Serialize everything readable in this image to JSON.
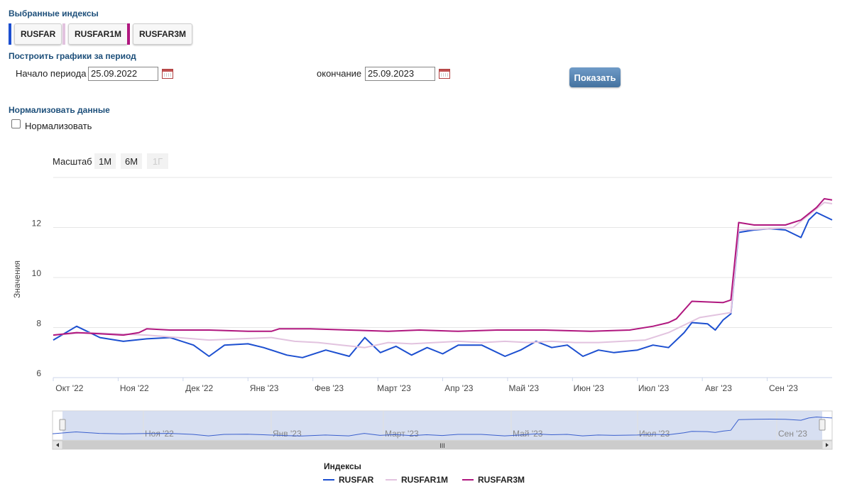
{
  "selected": {
    "title": "Выбранные индексы",
    "chips": [
      {
        "label": "RUSFAR",
        "color": "#1c4fd0"
      },
      {
        "label": "RUSFAR1M",
        "color": "#e2c3df"
      },
      {
        "label": "RUSFAR3M",
        "color": "#b0177f"
      }
    ]
  },
  "period": {
    "title": "Построить графики за период",
    "start_label": "Начало периода",
    "start_value": "25.09.2022",
    "end_label": "окончание",
    "end_value": "25.09.2023",
    "show_label": "Показать"
  },
  "normalize": {
    "title": "Нормализовать данные",
    "checkbox_label": "Нормализовать",
    "checked": false
  },
  "zoom": {
    "label": "Масштаб",
    "options": [
      "1М",
      "6М",
      "1Г"
    ]
  },
  "chart_data": {
    "type": "line",
    "ylabel": "Значения",
    "ylim": [
      6,
      14
    ],
    "y_ticks": [
      6,
      8,
      10,
      12
    ],
    "x_ticks": [
      "Окт '22",
      "Ноя '22",
      "Дек '22",
      "Янв '23",
      "Фев '23",
      "Март '23",
      "Апр '23",
      "Май '23",
      "Июн '23",
      "Июл '23",
      "Авг '23",
      "Сен '23"
    ],
    "grid": "horizontal",
    "series": [
      {
        "name": "RUSFAR",
        "color": "#1c4fd0",
        "points": [
          [
            0,
            7.5
          ],
          [
            3,
            8.05
          ],
          [
            6,
            7.6
          ],
          [
            9,
            7.45
          ],
          [
            12,
            7.55
          ],
          [
            15,
            7.6
          ],
          [
            18,
            7.3
          ],
          [
            20,
            6.85
          ],
          [
            22,
            7.3
          ],
          [
            25,
            7.35
          ],
          [
            27,
            7.2
          ],
          [
            30,
            6.9
          ],
          [
            32,
            6.8
          ],
          [
            35,
            7.1
          ],
          [
            38,
            6.85
          ],
          [
            40,
            7.6
          ],
          [
            42,
            7.0
          ],
          [
            44,
            7.25
          ],
          [
            46,
            6.9
          ],
          [
            48,
            7.2
          ],
          [
            50,
            6.95
          ],
          [
            52,
            7.3
          ],
          [
            55,
            7.3
          ],
          [
            58,
            6.85
          ],
          [
            60,
            7.1
          ],
          [
            62,
            7.45
          ],
          [
            64,
            7.2
          ],
          [
            66,
            7.3
          ],
          [
            68,
            6.85
          ],
          [
            70,
            7.1
          ],
          [
            72,
            7.0
          ],
          [
            75,
            7.1
          ],
          [
            77,
            7.3
          ],
          [
            79,
            7.2
          ],
          [
            81,
            7.8
          ],
          [
            82,
            8.2
          ],
          [
            84,
            8.15
          ],
          [
            85,
            7.9
          ],
          [
            86,
            8.3
          ],
          [
            87,
            8.55
          ],
          [
            88,
            11.8
          ],
          [
            90,
            11.9
          ],
          [
            92,
            11.95
          ],
          [
            94,
            11.9
          ],
          [
            96,
            11.6
          ],
          [
            97,
            12.3
          ],
          [
            98,
            12.6
          ],
          [
            99,
            12.45
          ],
          [
            100,
            12.3
          ]
        ]
      },
      {
        "name": "RUSFAR1M",
        "color": "#e2c3df",
        "points": [
          [
            0,
            7.7
          ],
          [
            4,
            7.8
          ],
          [
            8,
            7.75
          ],
          [
            12,
            7.7
          ],
          [
            16,
            7.6
          ],
          [
            20,
            7.5
          ],
          [
            24,
            7.55
          ],
          [
            28,
            7.6
          ],
          [
            31,
            7.45
          ],
          [
            34,
            7.4
          ],
          [
            37,
            7.3
          ],
          [
            40,
            7.2
          ],
          [
            43,
            7.4
          ],
          [
            46,
            7.35
          ],
          [
            49,
            7.4
          ],
          [
            52,
            7.45
          ],
          [
            55,
            7.4
          ],
          [
            58,
            7.45
          ],
          [
            61,
            7.4
          ],
          [
            64,
            7.45
          ],
          [
            67,
            7.4
          ],
          [
            70,
            7.4
          ],
          [
            73,
            7.45
          ],
          [
            76,
            7.5
          ],
          [
            79,
            7.8
          ],
          [
            81,
            8.1
          ],
          [
            83,
            8.4
          ],
          [
            85,
            8.5
          ],
          [
            87,
            8.6
          ],
          [
            88,
            11.9
          ],
          [
            92,
            11.95
          ],
          [
            95,
            12.0
          ],
          [
            97,
            12.5
          ],
          [
            99,
            13.0
          ],
          [
            100,
            12.95
          ]
        ]
      },
      {
        "name": "RUSFAR3M",
        "color": "#b0177f",
        "points": [
          [
            0,
            7.7
          ],
          [
            3,
            7.8
          ],
          [
            6,
            7.75
          ],
          [
            9,
            7.7
          ],
          [
            11,
            7.8
          ],
          [
            12,
            7.95
          ],
          [
            15,
            7.9
          ],
          [
            20,
            7.9
          ],
          [
            25,
            7.85
          ],
          [
            28,
            7.85
          ],
          [
            29,
            7.95
          ],
          [
            33,
            7.95
          ],
          [
            38,
            7.9
          ],
          [
            43,
            7.85
          ],
          [
            47,
            7.9
          ],
          [
            52,
            7.85
          ],
          [
            57,
            7.9
          ],
          [
            63,
            7.9
          ],
          [
            69,
            7.85
          ],
          [
            74,
            7.9
          ],
          [
            77,
            8.05
          ],
          [
            79,
            8.2
          ],
          [
            80,
            8.35
          ],
          [
            82,
            9.05
          ],
          [
            86,
            9.0
          ],
          [
            87,
            9.1
          ],
          [
            88,
            12.2
          ],
          [
            90,
            12.1
          ],
          [
            94,
            12.1
          ],
          [
            96,
            12.3
          ],
          [
            98,
            12.8
          ],
          [
            99,
            13.15
          ],
          [
            100,
            13.1
          ]
        ]
      }
    ],
    "legend_title": "Индексы",
    "legend_position": "bottom"
  },
  "navigator": {
    "x_ticks": [
      "Ноя '22",
      "Янв '23",
      "Март '23",
      "Май '23",
      "Июл '23",
      "Сен '23"
    ],
    "scroll_handle": "III"
  }
}
